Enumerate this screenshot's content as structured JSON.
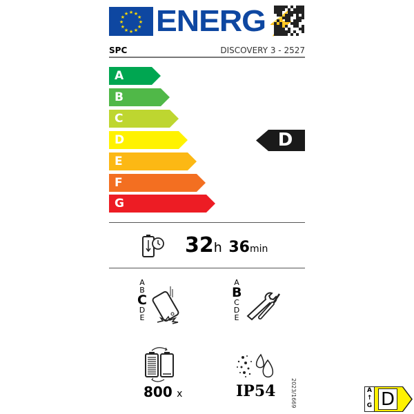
{
  "header": {
    "logo_text": "ENERG",
    "brand": "SPC",
    "model": "DISCOVERY 3 - 2527"
  },
  "scale": {
    "classes": [
      "A",
      "B",
      "C",
      "D",
      "E",
      "F",
      "G"
    ],
    "colors": [
      "#00a651",
      "#50b848",
      "#bed630",
      "#fff200",
      "#fcb814",
      "#f36f21",
      "#ed1c24"
    ],
    "rating": "D"
  },
  "battery_life": {
    "hours": "32",
    "h_unit": "h",
    "minutes": "36",
    "min_unit": "min"
  },
  "drop": {
    "classes": [
      "A",
      "B",
      "C",
      "D",
      "E"
    ],
    "rating": "C"
  },
  "repair": {
    "classes": [
      "A",
      "B",
      "C",
      "D",
      "E"
    ],
    "rating": "B"
  },
  "cycles": {
    "value": "800",
    "unit": "x"
  },
  "ingress": {
    "value": "IP54"
  },
  "regulation": "2023/1669",
  "badge": {
    "top": "A",
    "bottom": "G",
    "rating": "D"
  }
}
